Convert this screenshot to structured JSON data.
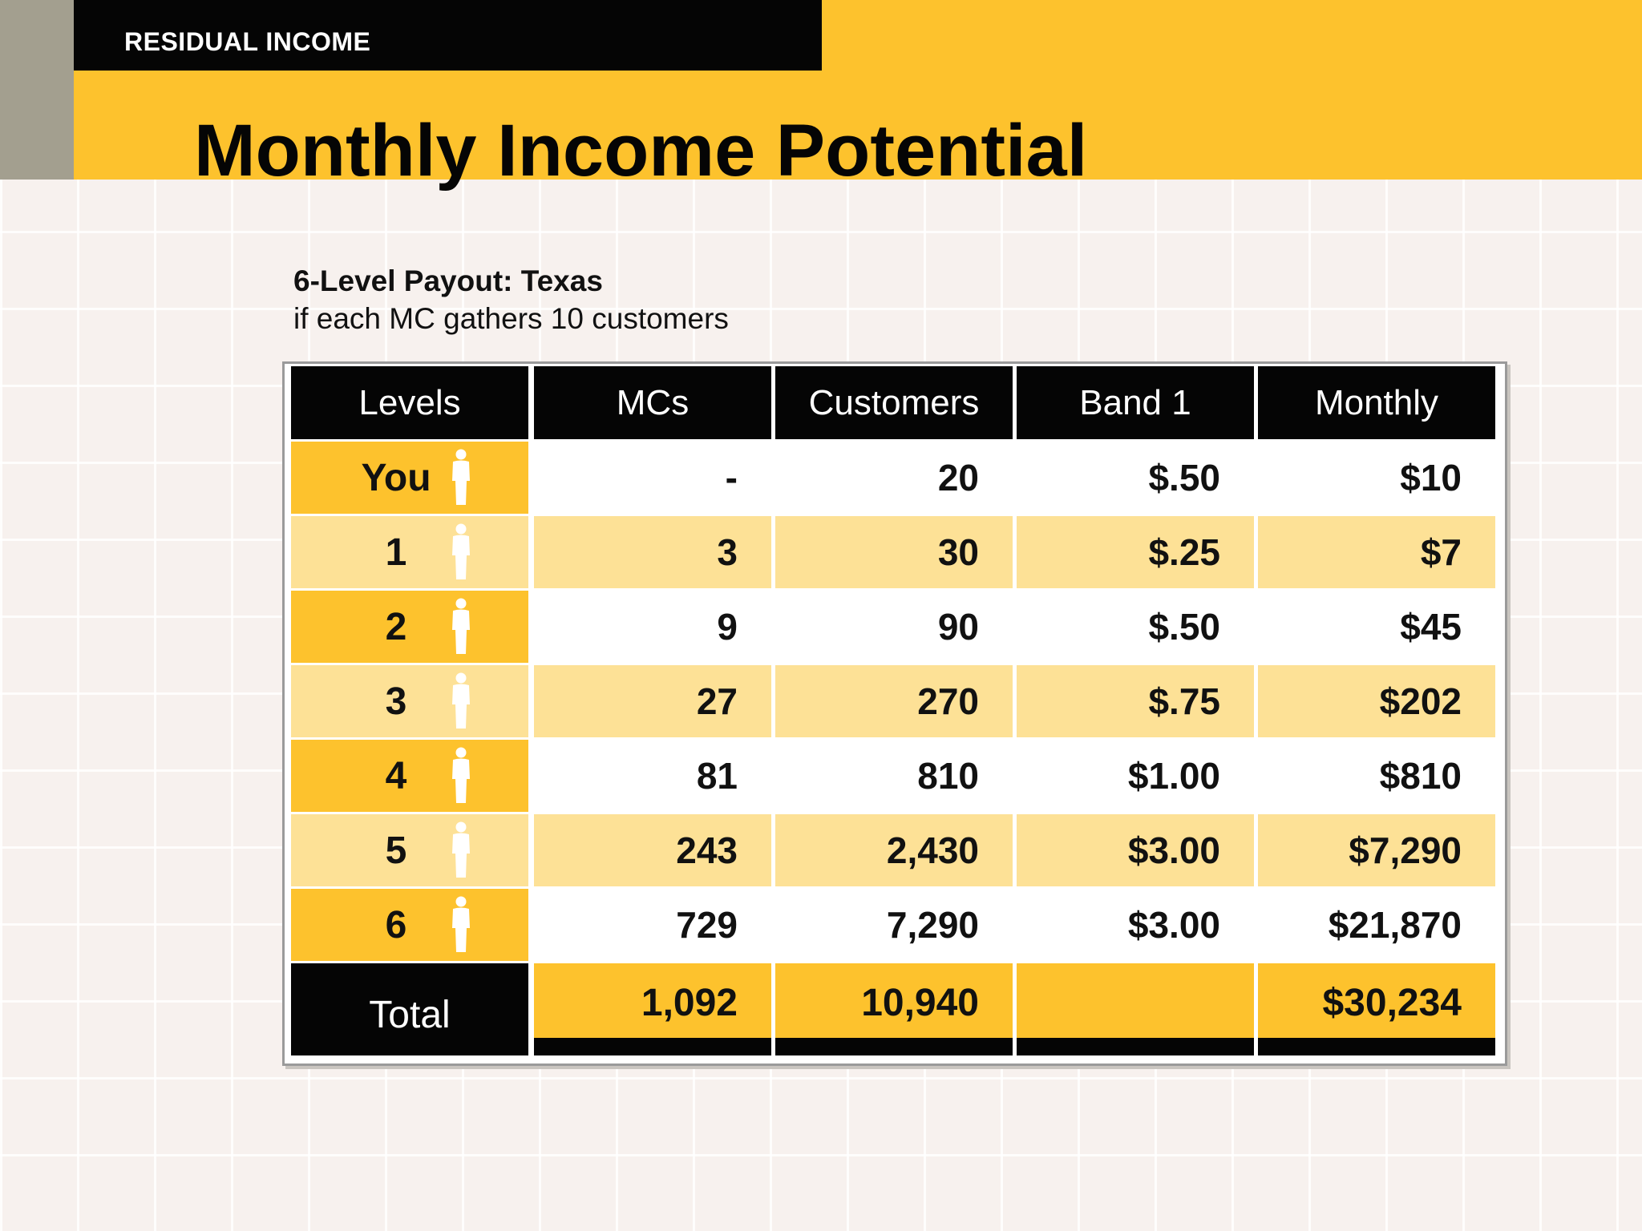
{
  "header": {
    "section_label": "RESIDUAL INCOME",
    "title": "Monthly Income Potential"
  },
  "intro": {
    "subtitle": "6-Level Payout: Texas",
    "caption": "if each MC gathers 10 customers"
  },
  "colors": {
    "accent_yellow": "#fdc22d",
    "light_yellow": "#fde196",
    "black": "#050505",
    "white": "#ffffff"
  },
  "table": {
    "columns": [
      "Levels",
      "MCs",
      "Customers",
      "Band 1",
      "Monthly"
    ],
    "rows": [
      {
        "level": "You",
        "mcs": "-",
        "customers": "20",
        "band": "$.50",
        "monthly": "$10",
        "icon": "person-icon"
      },
      {
        "level": "1",
        "mcs": "3",
        "customers": "30",
        "band": "$.25",
        "monthly": "$7",
        "icon": "person-icon"
      },
      {
        "level": "2",
        "mcs": "9",
        "customers": "90",
        "band": "$.50",
        "monthly": "$45",
        "icon": "person-icon"
      },
      {
        "level": "3",
        "mcs": "27",
        "customers": "270",
        "band": "$.75",
        "monthly": "$202",
        "icon": "person-icon"
      },
      {
        "level": "4",
        "mcs": "81",
        "customers": "810",
        "band": "$1.00",
        "monthly": "$810",
        "icon": "person-icon"
      },
      {
        "level": "5",
        "mcs": "243",
        "customers": "2,430",
        "band": "$3.00",
        "monthly": "$7,290",
        "icon": "person-icon"
      },
      {
        "level": "6",
        "mcs": "729",
        "customers": "7,290",
        "band": "$3.00",
        "monthly": "$21,870",
        "icon": "person-icon"
      }
    ],
    "total": {
      "label": "Total",
      "mcs": "1,092",
      "customers": "10,940",
      "band": "",
      "monthly": "$30,234"
    }
  }
}
